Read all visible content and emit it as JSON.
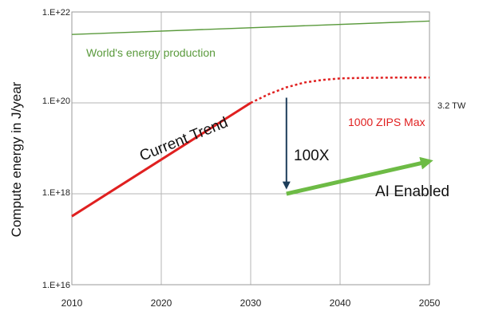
{
  "chart_data": {
    "type": "line",
    "title": "",
    "xlabel": "",
    "ylabel": "Compute energy in J/year",
    "yscale": "log",
    "xlim": [
      2010,
      2050
    ],
    "ylim": [
      1e+16,
      1e+22
    ],
    "x_ticks": [
      "2010",
      "2020",
      "2030",
      "2040",
      "2050"
    ],
    "y_ticks": [
      "1.E+16",
      "1.E+18",
      "1.E+20",
      "1.E+22"
    ],
    "grid": true,
    "series": [
      {
        "name": "World's energy production",
        "color": "#5a9a3c",
        "style": "solid",
        "x": [
          2010,
          2050
        ],
        "y": [
          3.2e+21,
          6.3e+21
        ]
      },
      {
        "name": "Current Trend",
        "color": "#e02020",
        "style": "solid",
        "x": [
          2010,
          2030
        ],
        "y": [
          3.2e+17,
          1e+20
        ]
      },
      {
        "name": "1000 ZIPS Max",
        "color": "#e02020",
        "style": "dotted",
        "x": [
          2030,
          2032,
          2034,
          2036,
          2038,
          2040,
          2043,
          2046,
          2050
        ],
        "y": [
          1e+20,
          1.55e+20,
          2.2e+20,
          2.8e+20,
          3.2e+20,
          3.45e+20,
          3.55e+20,
          3.6e+20,
          3.6e+20
        ]
      },
      {
        "name": "AI Enabled",
        "color": "#6dbb45",
        "style": "arrow",
        "x": [
          2034,
          2050
        ],
        "y": [
          1e+18,
          5.2e+18
        ]
      }
    ],
    "annotations": {
      "current_trend": "Current Trend",
      "zips_max": "1000 ZIPS Max",
      "tw": "3.2 TW",
      "reduction": "100X",
      "ai_enabled": "AI Enabled",
      "world": "World's energy production"
    },
    "reduction_arrow": {
      "x": 2034,
      "y_from": 1.3e+20,
      "y_to": 1.35e+18,
      "color": "#1c3d5a"
    }
  }
}
